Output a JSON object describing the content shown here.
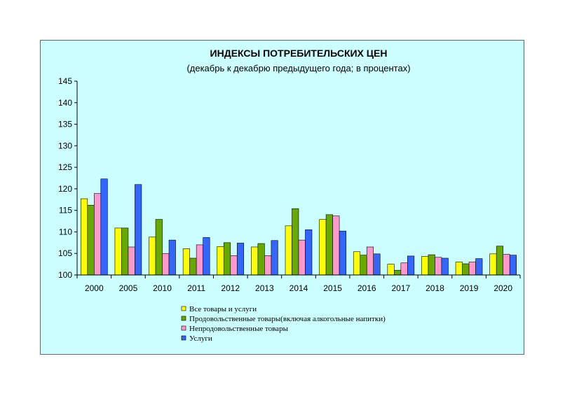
{
  "chart_data": {
    "type": "bar",
    "title": "ИНДЕКСЫ ПОТРЕБИТЕЛЬСКИХ ЦЕН",
    "subtitle": "(декабрь к декабрю предыдущего года; в процентах)",
    "xlabel": "",
    "ylabel": "",
    "ylim": [
      100,
      145
    ],
    "yticks": [
      100,
      105,
      110,
      115,
      120,
      125,
      130,
      135,
      140,
      145
    ],
    "grid": false,
    "legend_position": "bottom",
    "categories": [
      "2000",
      "2005",
      "2010",
      "2011",
      "2012",
      "2013",
      "2014",
      "2015",
      "2016",
      "2017",
      "2018",
      "2019",
      "2020"
    ],
    "series": [
      {
        "name": "Все товары и услуги",
        "color": "#ffff00",
        "values": [
          117.7,
          110.9,
          108.8,
          106.1,
          106.6,
          106.5,
          111.4,
          112.9,
          105.4,
          102.5,
          104.3,
          103.0,
          104.9
        ]
      },
      {
        "name": "Продовольственные товары(включая алкогольные напитки)",
        "color": "#66aa00",
        "values": [
          116.2,
          110.9,
          112.9,
          103.9,
          107.5,
          107.3,
          115.4,
          114.0,
          104.6,
          101.1,
          104.7,
          102.6,
          106.7
        ]
      },
      {
        "name": "Непродовольственные товары",
        "color": "#ff99cc",
        "values": [
          118.9,
          106.5,
          105.0,
          107.0,
          104.5,
          104.5,
          108.1,
          113.7,
          106.5,
          102.8,
          104.1,
          103.0,
          104.8
        ]
      },
      {
        "name": "Услуги",
        "color": "#3366ff",
        "values": [
          122.3,
          121.0,
          108.1,
          108.7,
          107.4,
          108.0,
          110.5,
          110.2,
          104.9,
          104.4,
          103.9,
          103.8,
          104.6
        ]
      }
    ]
  }
}
